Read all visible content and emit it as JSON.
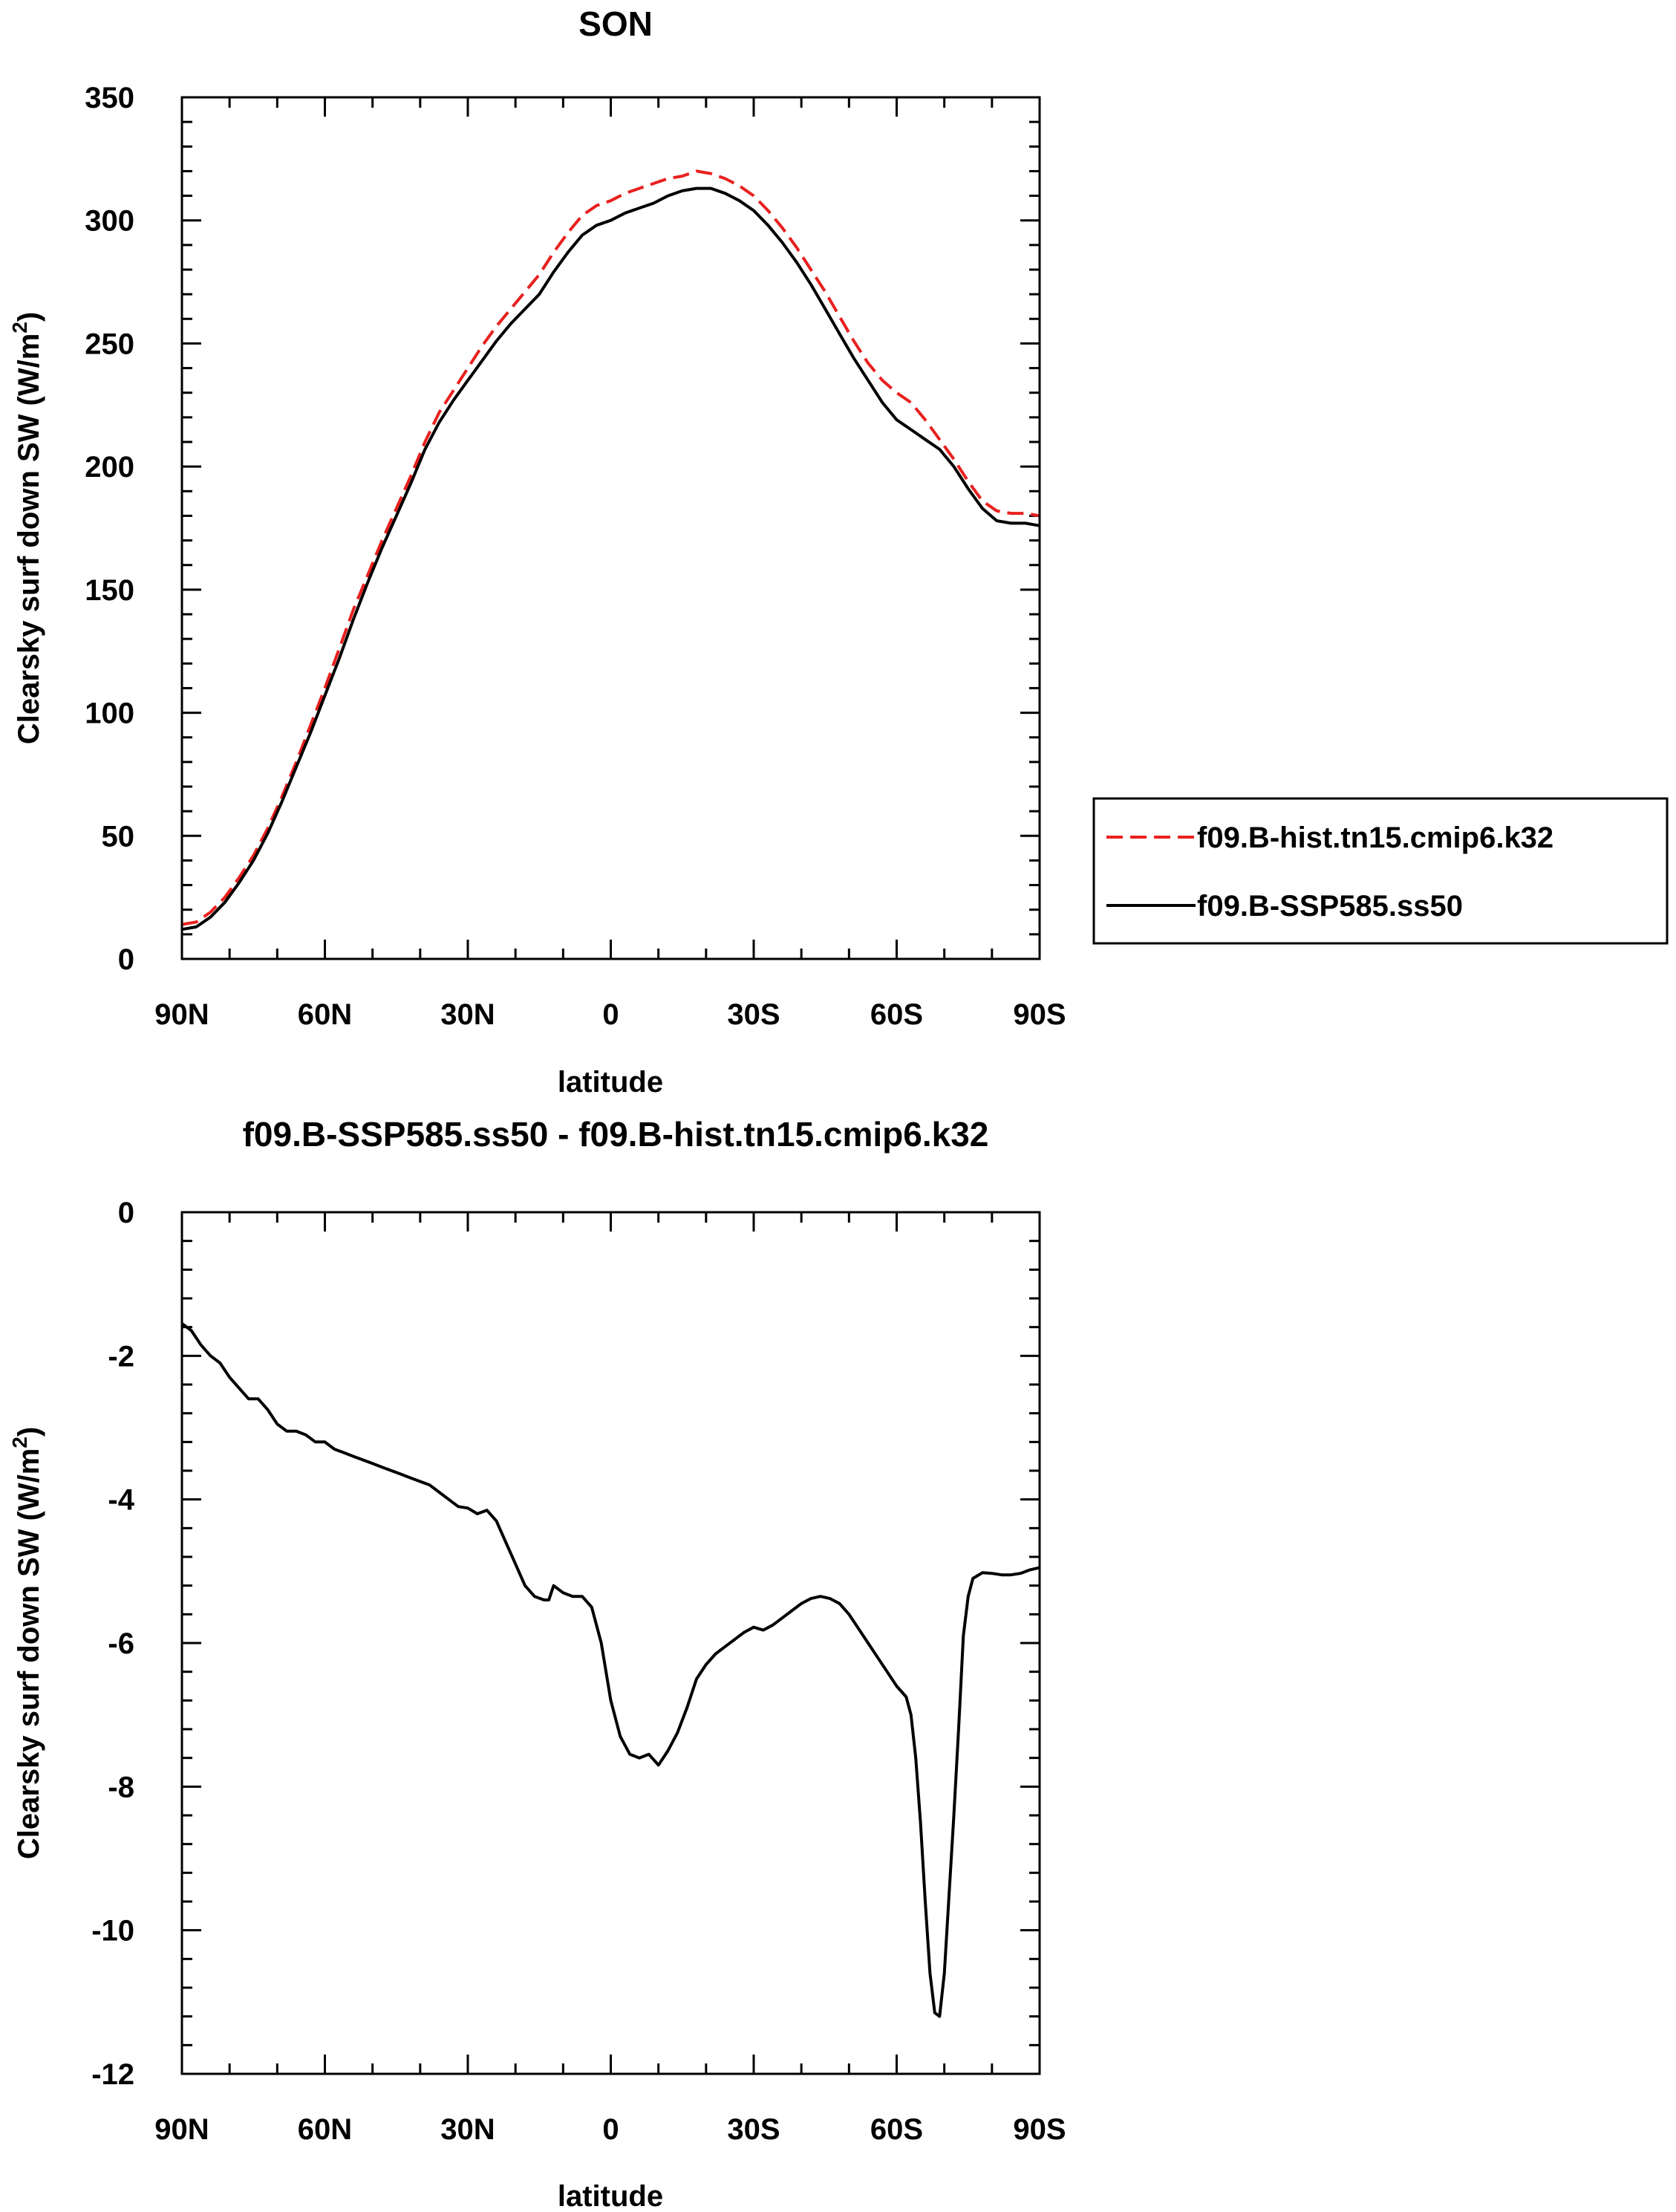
{
  "chart_data": [
    {
      "type": "line",
      "title": "SON",
      "xlabel": "latitude",
      "ylabel": "Clearsky surf down SW (W/m",
      "ylabel_sup": "2",
      "ylabel_close": ")",
      "xlim": [
        90,
        -90
      ],
      "ylim": [
        0,
        350
      ],
      "xticks": [
        90,
        60,
        30,
        0,
        -30,
        -60,
        -90
      ],
      "xtick_labels": [
        "90N",
        "60N",
        "30N",
        "0",
        "30S",
        "60S",
        "90S"
      ],
      "yticks": [
        0,
        50,
        100,
        150,
        200,
        250,
        300,
        350
      ],
      "ytick_labels": [
        "0",
        "50",
        "100",
        "150",
        "200",
        "250",
        "300",
        "350"
      ],
      "legend": {
        "position": "right-outside"
      },
      "series": [
        {
          "name": "f09.B-hist.tn15.cmip6.k32",
          "color": "#e8201e",
          "dash": "dashed",
          "points": [
            [
              90,
              14
            ],
            [
              87,
              15
            ],
            [
              84,
              19
            ],
            [
              81,
              25
            ],
            [
              78,
              33
            ],
            [
              75,
              42
            ],
            [
              72,
              53
            ],
            [
              69,
              66
            ],
            [
              66,
              80
            ],
            [
              63,
              95
            ],
            [
              60,
              110
            ],
            [
              57,
              126
            ],
            [
              54,
              142
            ],
            [
              51,
              156
            ],
            [
              48,
              170
            ],
            [
              45,
              183
            ],
            [
              42,
              196
            ],
            [
              39,
              210
            ],
            [
              36,
              222
            ],
            [
              33,
              231
            ],
            [
              30,
              240
            ],
            [
              27,
              249
            ],
            [
              24,
              257
            ],
            [
              21,
              264
            ],
            [
              18,
              271
            ],
            [
              15,
              278
            ],
            [
              12,
              287
            ],
            [
              9,
              295
            ],
            [
              6,
              302
            ],
            [
              3,
              306
            ],
            [
              0,
              308
            ],
            [
              -3,
              311
            ],
            [
              -6,
              313
            ],
            [
              -9,
              315
            ],
            [
              -12,
              317
            ],
            [
              -15,
              318
            ],
            [
              -18,
              320
            ],
            [
              -21,
              319
            ],
            [
              -24,
              317
            ],
            [
              -27,
              314
            ],
            [
              -30,
              310
            ],
            [
              -33,
              304
            ],
            [
              -36,
              297
            ],
            [
              -39,
              289
            ],
            [
              -42,
              280
            ],
            [
              -45,
              271
            ],
            [
              -48,
              261
            ],
            [
              -51,
              251
            ],
            [
              -54,
              242
            ],
            [
              -57,
              235
            ],
            [
              -60,
              230
            ],
            [
              -63,
              226
            ],
            [
              -66,
              219
            ],
            [
              -69,
              211
            ],
            [
              -72,
              203
            ],
            [
              -75,
              194
            ],
            [
              -78,
              186
            ],
            [
              -81,
              182
            ],
            [
              -84,
              181
            ],
            [
              -87,
              181
            ],
            [
              -90,
              180
            ]
          ]
        },
        {
          "name": "f09.B-SSP585.ss50",
          "color": "#000000",
          "dash": "solid",
          "points": [
            [
              90,
              12
            ],
            [
              87,
              13
            ],
            [
              84,
              17
            ],
            [
              81,
              23
            ],
            [
              78,
              31
            ],
            [
              75,
              40
            ],
            [
              72,
              51
            ],
            [
              69,
              64
            ],
            [
              66,
              78
            ],
            [
              63,
              92
            ],
            [
              60,
              107
            ],
            [
              57,
              122
            ],
            [
              54,
              138
            ],
            [
              51,
              153
            ],
            [
              48,
              167
            ],
            [
              45,
              180
            ],
            [
              42,
              193
            ],
            [
              39,
              207
            ],
            [
              36,
              218
            ],
            [
              33,
              227
            ],
            [
              30,
              235
            ],
            [
              27,
              243
            ],
            [
              24,
              251
            ],
            [
              21,
              258
            ],
            [
              18,
              264
            ],
            [
              15,
              270
            ],
            [
              12,
              279
            ],
            [
              9,
              287
            ],
            [
              6,
              294
            ],
            [
              3,
              298
            ],
            [
              0,
              300
            ],
            [
              -3,
              303
            ],
            [
              -6,
              305
            ],
            [
              -9,
              307
            ],
            [
              -12,
              310
            ],
            [
              -15,
              312
            ],
            [
              -18,
              313
            ],
            [
              -21,
              313
            ],
            [
              -24,
              311
            ],
            [
              -27,
              308
            ],
            [
              -30,
              304
            ],
            [
              -33,
              298
            ],
            [
              -36,
              291
            ],
            [
              -39,
              283
            ],
            [
              -42,
              274
            ],
            [
              -45,
              264
            ],
            [
              -48,
              254
            ],
            [
              -51,
              244
            ],
            [
              -54,
              235
            ],
            [
              -57,
              226
            ],
            [
              -60,
              219
            ],
            [
              -63,
              215
            ],
            [
              -66,
              211
            ],
            [
              -69,
              207
            ],
            [
              -72,
              200
            ],
            [
              -75,
              191
            ],
            [
              -78,
              183
            ],
            [
              -81,
              178
            ],
            [
              -84,
              177
            ],
            [
              -87,
              177
            ],
            [
              -90,
              176
            ]
          ]
        }
      ]
    },
    {
      "type": "line",
      "title": "f09.B-SSP585.ss50 - f09.B-hist.tn15.cmip6.k32",
      "xlabel": "latitude",
      "ylabel": "Clearsky surf down SW (W/m",
      "ylabel_sup": "2",
      "ylabel_close": ")",
      "xlim": [
        90,
        -90
      ],
      "ylim": [
        -12,
        0
      ],
      "xticks": [
        90,
        60,
        30,
        0,
        -30,
        -60,
        -90
      ],
      "xtick_labels": [
        "90N",
        "60N",
        "30N",
        "0",
        "30S",
        "60S",
        "90S"
      ],
      "yticks": [
        0,
        -2,
        -4,
        -6,
        -8,
        -10,
        -12
      ],
      "ytick_labels": [
        "0",
        "-2",
        "-4",
        "-6",
        "-8",
        "-10",
        "-12"
      ],
      "series": [
        {
          "name": "f09.B-SSP585.ss50 - f09.B-hist.tn15.cmip6.k32",
          "color": "#000000",
          "dash": "solid",
          "points": [
            [
              90,
              -1.55
            ],
            [
              88,
              -1.65
            ],
            [
              86,
              -1.85
            ],
            [
              84,
              -2.0
            ],
            [
              82,
              -2.1
            ],
            [
              80,
              -2.3
            ],
            [
              78,
              -2.45
            ],
            [
              76,
              -2.6
            ],
            [
              74,
              -2.6
            ],
            [
              72,
              -2.75
            ],
            [
              70,
              -2.95
            ],
            [
              68,
              -3.05
            ],
            [
              66,
              -3.05
            ],
            [
              64,
              -3.1
            ],
            [
              62,
              -3.2
            ],
            [
              60,
              -3.2
            ],
            [
              58,
              -3.3
            ],
            [
              56,
              -3.35
            ],
            [
              54,
              -3.4
            ],
            [
              52,
              -3.45
            ],
            [
              50,
              -3.5
            ],
            [
              48,
              -3.55
            ],
            [
              46,
              -3.6
            ],
            [
              44,
              -3.65
            ],
            [
              42,
              -3.7
            ],
            [
              40,
              -3.75
            ],
            [
              38,
              -3.8
            ],
            [
              36,
              -3.9
            ],
            [
              34,
              -4.0
            ],
            [
              32,
              -4.1
            ],
            [
              30,
              -4.12
            ],
            [
              28,
              -4.2
            ],
            [
              26,
              -4.15
            ],
            [
              24,
              -4.3
            ],
            [
              22,
              -4.6
            ],
            [
              20,
              -4.9
            ],
            [
              18,
              -5.2
            ],
            [
              16,
              -5.35
            ],
            [
              14,
              -5.4
            ],
            [
              13,
              -5.4
            ],
            [
              12,
              -5.2
            ],
            [
              10,
              -5.3
            ],
            [
              8,
              -5.35
            ],
            [
              6,
              -5.35
            ],
            [
              4,
              -5.5
            ],
            [
              2,
              -6.0
            ],
            [
              0,
              -6.8
            ],
            [
              -2,
              -7.3
            ],
            [
              -4,
              -7.55
            ],
            [
              -6,
              -7.6
            ],
            [
              -8,
              -7.55
            ],
            [
              -10,
              -7.7
            ],
            [
              -12,
              -7.5
            ],
            [
              -14,
              -7.25
            ],
            [
              -16,
              -6.9
            ],
            [
              -18,
              -6.5
            ],
            [
              -20,
              -6.3
            ],
            [
              -22,
              -6.15
            ],
            [
              -24,
              -6.05
            ],
            [
              -26,
              -5.95
            ],
            [
              -28,
              -5.85
            ],
            [
              -30,
              -5.78
            ],
            [
              -32,
              -5.82
            ],
            [
              -34,
              -5.75
            ],
            [
              -36,
              -5.65
            ],
            [
              -38,
              -5.55
            ],
            [
              -40,
              -5.45
            ],
            [
              -42,
              -5.38
            ],
            [
              -44,
              -5.35
            ],
            [
              -46,
              -5.38
            ],
            [
              -48,
              -5.45
            ],
            [
              -50,
              -5.6
            ],
            [
              -52,
              -5.8
            ],
            [
              -54,
              -6.0
            ],
            [
              -56,
              -6.2
            ],
            [
              -58,
              -6.4
            ],
            [
              -60,
              -6.6
            ],
            [
              -62,
              -6.75
            ],
            [
              -63,
              -7.0
            ],
            [
              -64,
              -7.6
            ],
            [
              -65,
              -8.5
            ],
            [
              -66,
              -9.6
            ],
            [
              -67,
              -10.6
            ],
            [
              -68,
              -11.15
            ],
            [
              -69,
              -11.2
            ],
            [
              -70,
              -10.6
            ],
            [
              -71,
              -9.5
            ],
            [
              -72,
              -8.4
            ],
            [
              -73,
              -7.2
            ],
            [
              -74,
              -5.9
            ],
            [
              -75,
              -5.35
            ],
            [
              -76,
              -5.1
            ],
            [
              -78,
              -5.02
            ],
            [
              -80,
              -5.03
            ],
            [
              -82,
              -5.05
            ],
            [
              -84,
              -5.05
            ],
            [
              -86,
              -5.03
            ],
            [
              -88,
              -4.98
            ],
            [
              -90,
              -4.95
            ]
          ]
        }
      ]
    }
  ]
}
